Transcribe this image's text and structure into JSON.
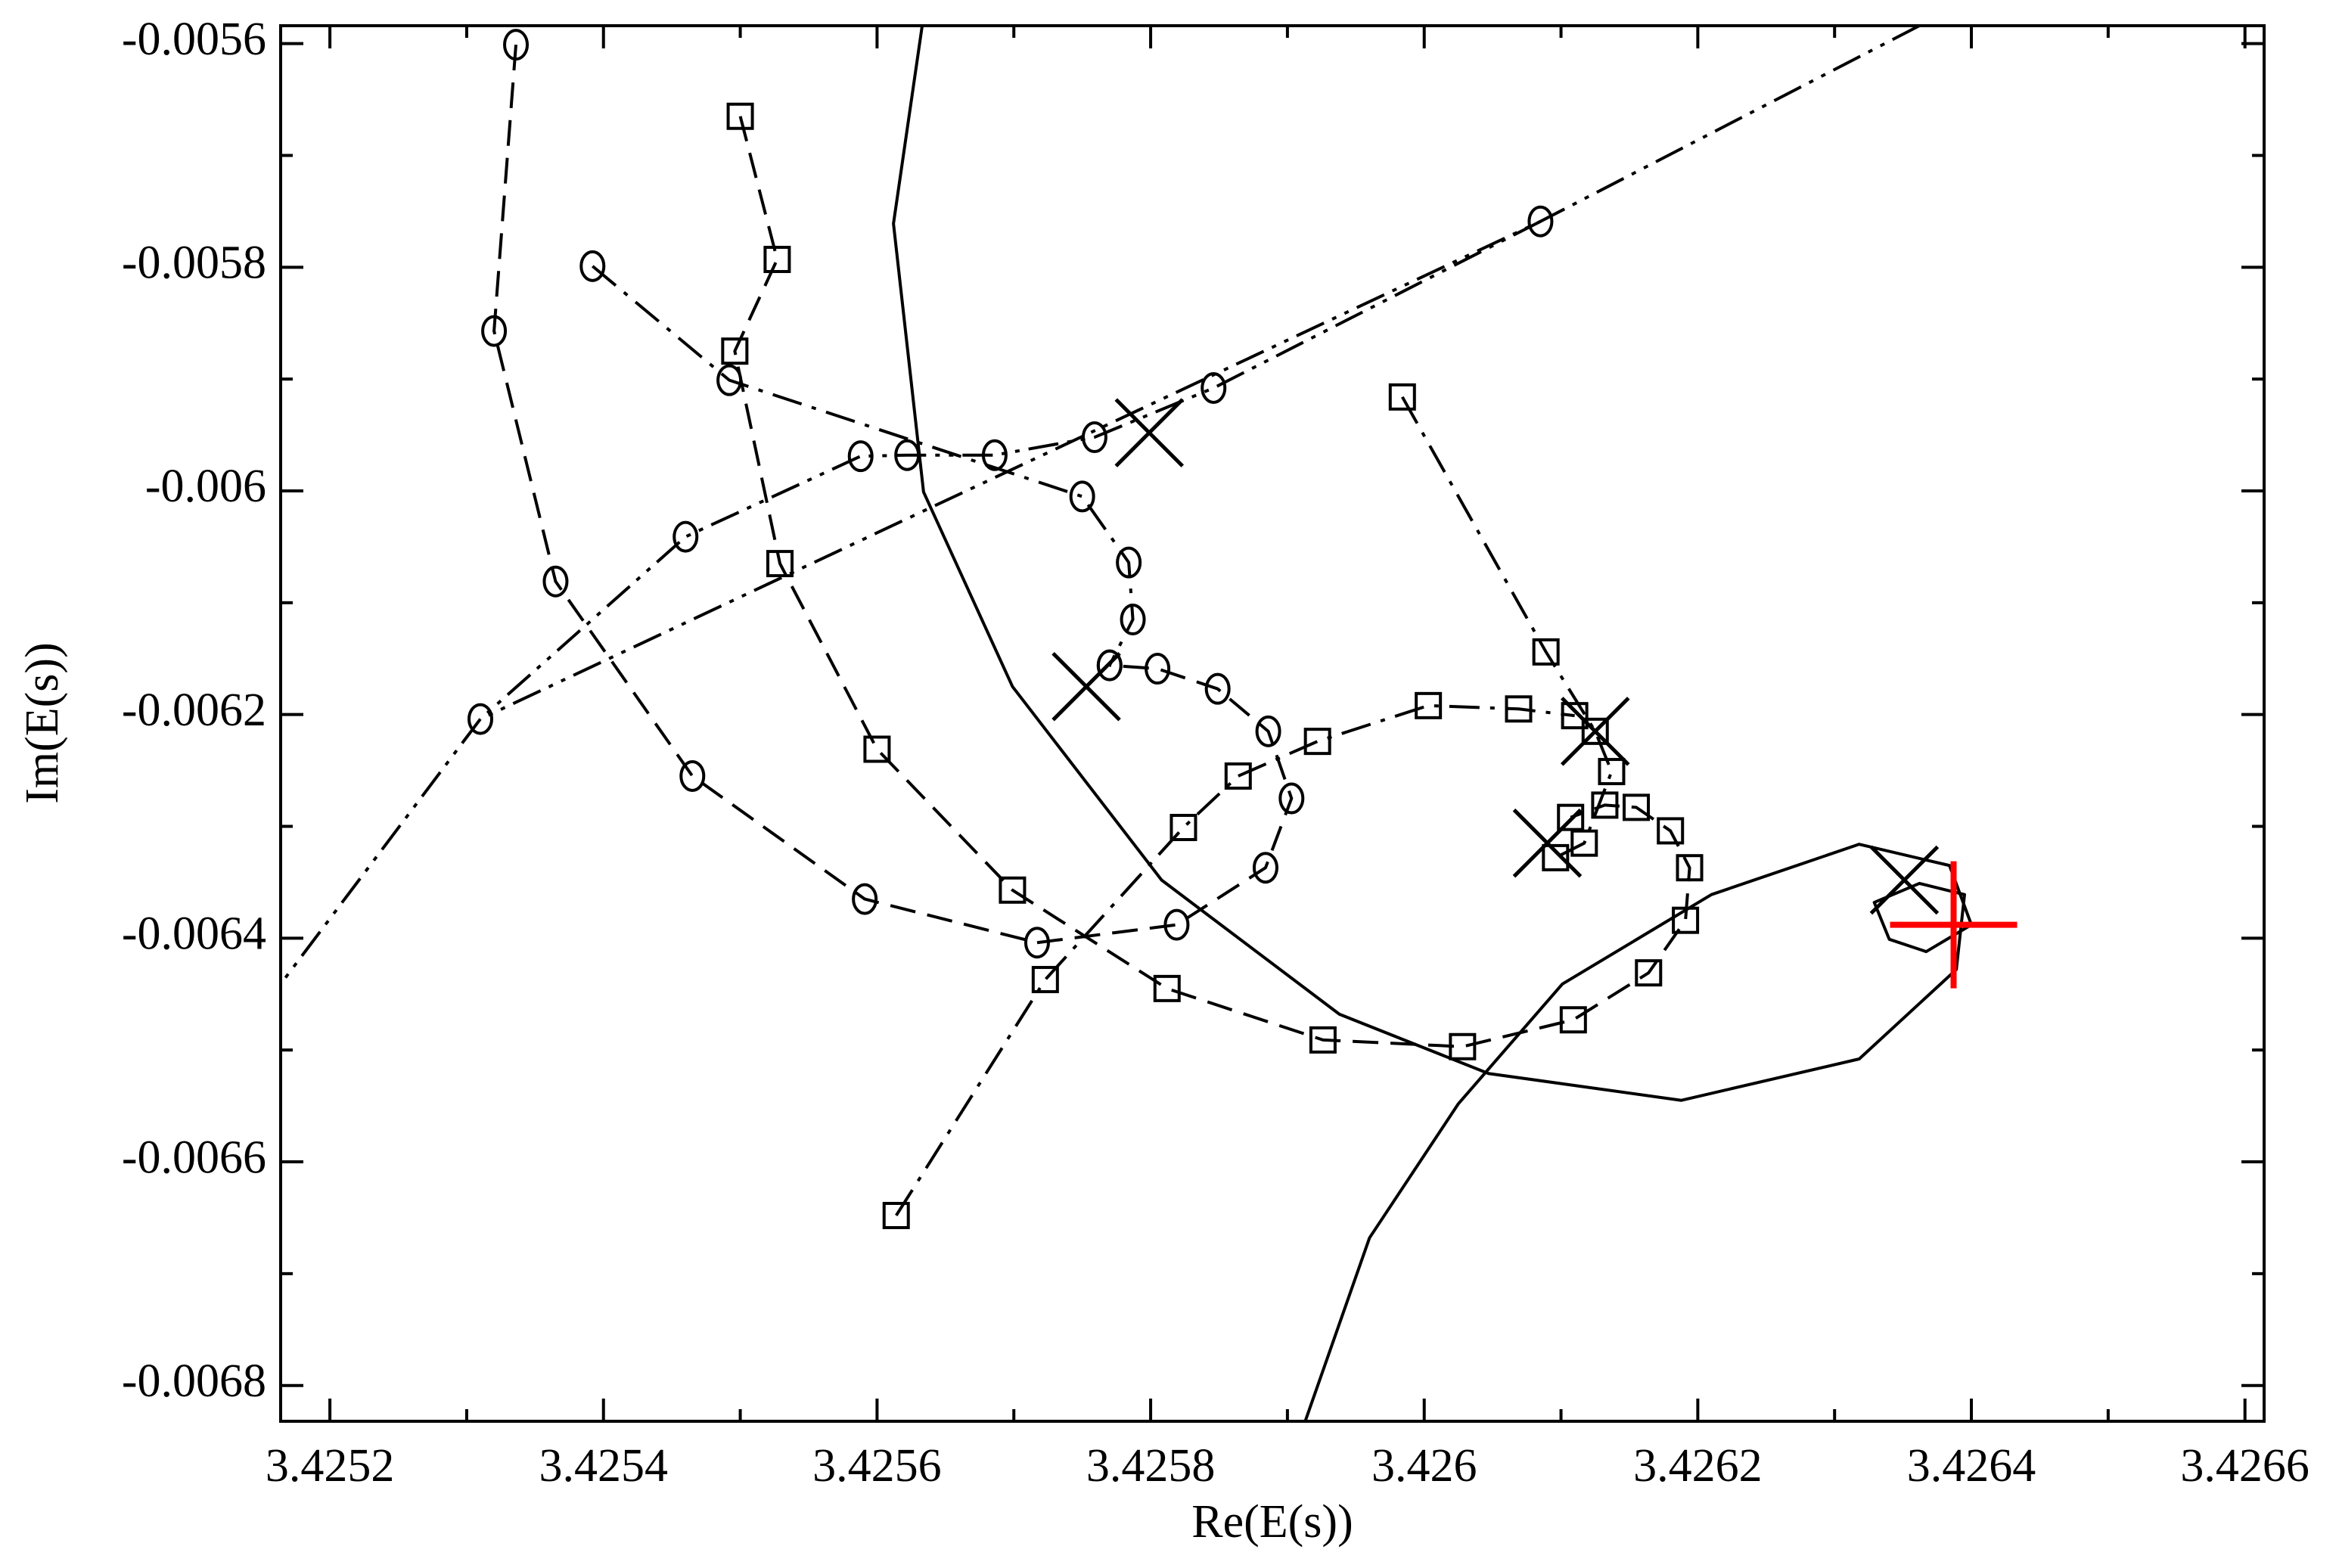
{
  "chart_data": {
    "type": "line",
    "x_label": "Re(E(s))",
    "y_label": "Im(E(s))",
    "xlim": [
      3.425164,
      3.426614
    ],
    "ylim": [
      -0.006832,
      -0.005584
    ],
    "xticks": [
      3.4252,
      3.4254,
      3.4256,
      3.4258,
      3.426,
      3.4262,
      3.4264,
      3.4266
    ],
    "yticks": [
      -0.0056,
      -0.0058,
      -0.006,
      -0.0062,
      -0.0064,
      -0.0066,
      -0.0068
    ],
    "minor_ticks": 1,
    "series": [
      {
        "color": "#000000",
        "linestyle": "solid",
        "marker": null,
        "x": [
          3.425633,
          3.425612,
          3.425634,
          3.425699,
          3.425808,
          3.425938,
          3.426047,
          3.426188,
          3.426318,
          3.426389,
          3.426395,
          3.426362,
          3.426329,
          3.42634,
          3.426367,
          3.4264,
          3.426384,
          3.426318,
          3.42621,
          3.426101,
          3.426025,
          3.42596,
          3.425913
        ],
        "values": [
          -0.005584,
          -0.005761,
          -0.006001,
          -0.006175,
          -0.006348,
          -0.006468,
          -0.006521,
          -0.006545,
          -0.006508,
          -0.006428,
          -0.006361,
          -0.006351,
          -0.006368,
          -0.006401,
          -0.006412,
          -0.006388,
          -0.006335,
          -0.006316,
          -0.006361,
          -0.006441,
          -0.006548,
          -0.006668,
          -0.006832
        ]
      },
      {
        "color": "#000000",
        "linestyle": "dashed",
        "marker": "circle",
        "x": [
          3.425336,
          3.42532,
          3.425365,
          3.425465,
          3.425591,
          3.425717,
          3.425819,
          3.425884,
          3.425903,
          3.425886,
          3.425849,
          3.425805,
          3.42577
        ],
        "values": [
          -0.005601,
          -0.005857,
          -0.006081,
          -0.006255,
          -0.006365,
          -0.006404,
          -0.006388,
          -0.006337,
          -0.006275,
          -0.006215,
          -0.006177,
          -0.006159,
          -0.006156
        ]
      },
      {
        "color": "#000000",
        "linestyle": "dashdotdot",
        "marker": "circle",
        "x": [
          3.426085,
          3.425846,
          3.425759,
          3.425686,
          3.425622,
          3.425588,
          3.42546,
          3.42531
        ],
        "values": [
          -0.005759,
          -0.005908,
          -0.005952,
          -0.005968,
          -0.005968,
          -0.005969,
          -0.006041,
          -0.006204
        ]
      },
      {
        "color": "#000000",
        "linestyle": "dashdotdot",
        "marker": null,
        "x": [
          3.426362,
          3.426085,
          3.42531,
          3.425164
        ],
        "values": [
          -0.005584,
          -0.005759,
          -0.006204,
          -0.006441
        ]
      },
      {
        "color": "#000000",
        "linestyle": "dashdot",
        "marker": "circle",
        "x": [
          3.425392,
          3.425492,
          3.42575,
          3.425784,
          3.425787,
          3.42577
        ],
        "values": [
          -0.005799,
          -0.005901,
          -0.006005,
          -0.006064,
          -0.006115,
          -0.006156
        ]
      },
      {
        "color": "#000000",
        "linestyle": "dashed",
        "marker": "square",
        "x": [
          3.4255,
          3.425527,
          3.425496,
          3.425529,
          3.4256,
          3.425699,
          3.425812,
          3.425926,
          3.426028,
          3.426109,
          3.426164,
          3.426191,
          3.426194,
          3.42618,
          3.426155,
          3.426132,
          3.426107
        ],
        "values": [
          -0.005665,
          -0.005793,
          -0.005875,
          -0.006065,
          -0.006231,
          -0.006357,
          -0.006445,
          -0.006491,
          -0.006497,
          -0.006473,
          -0.006431,
          -0.006384,
          -0.006337,
          -0.006304,
          -0.006283,
          -0.006281,
          -0.006292
        ]
      },
      {
        "color": "#000000",
        "linestyle": "dashdot",
        "marker": "square",
        "x": [
          3.425984,
          3.426089,
          3.426125,
          3.426137,
          3.426117,
          3.426096
        ],
        "values": [
          -0.005916,
          -0.006144,
          -0.006215,
          -0.006251,
          -0.006315,
          -0.006328
        ]
      },
      {
        "color": "#000000",
        "linestyle": "dashdot",
        "marker": "square",
        "x": [
          3.425614,
          3.425723,
          3.425824,
          3.425864,
          3.425922,
          3.426003,
          3.426069,
          3.42611
        ],
        "values": [
          -0.006648,
          -0.006437,
          -0.006301,
          -0.006255,
          -0.006224,
          -0.006192,
          -0.006195,
          -0.006201
        ]
      },
      {
        "color": "#000000",
        "linestyle": "none",
        "marker": "x",
        "x": [
          3.425799,
          3.425753,
          3.426125,
          3.42609,
          3.426351
        ],
        "values": [
          -0.005948,
          -0.006175,
          -0.006215,
          -0.006315,
          -0.006348
        ]
      },
      {
        "color": "#ff0000",
        "linestyle": "none",
        "marker": "plus",
        "x": [
          3.426387
        ],
        "values": [
          -0.006388
        ]
      }
    ]
  }
}
